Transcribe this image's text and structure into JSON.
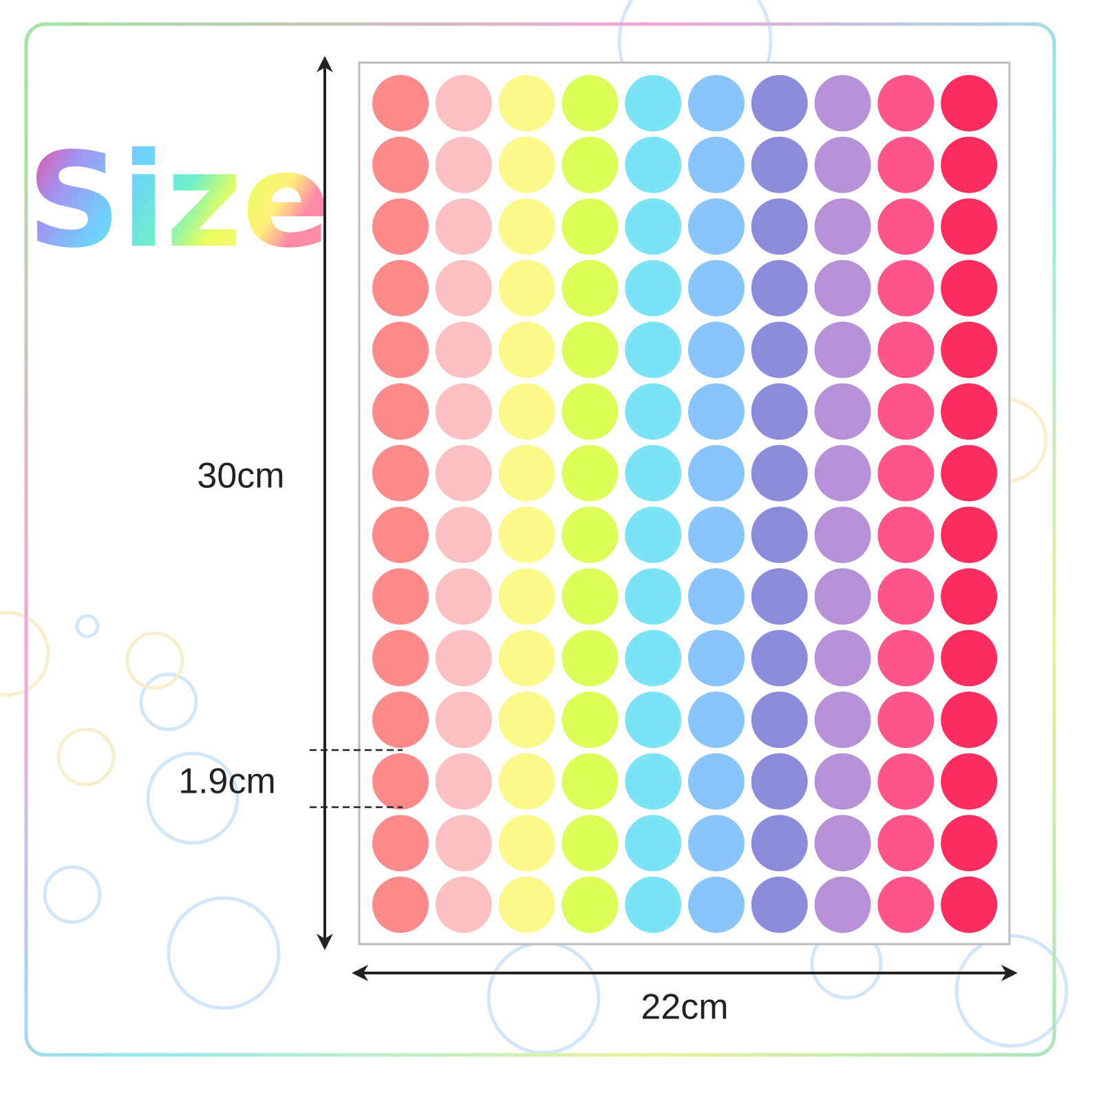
{
  "title": "Size",
  "height_label": "30cm",
  "width_label": "22cm",
  "dot_label": "1.9cm"
}
